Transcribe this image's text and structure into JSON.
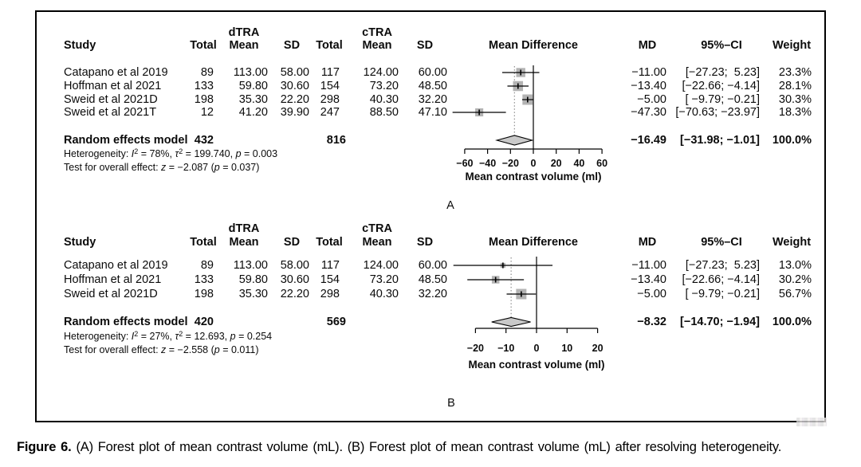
{
  "figure": {
    "caption_label": "Figure 6.",
    "caption_text": "(A) Forest plot of mean contrast volume (mL). (B) Forest plot of mean contrast volume (mL) after resolving heterogeneity."
  },
  "columns": {
    "study": "Study",
    "total": "Total",
    "dtra": "dTRA",
    "ctra": "cTRA",
    "mean": "Mean",
    "sd": "SD",
    "mean_difference": "Mean Difference",
    "md": "MD",
    "ci": "95%–CI",
    "weight": "Weight"
  },
  "chart_data": [
    {
      "type": "forest",
      "panel_label": "A",
      "axis": {
        "ticks": [
          -60,
          -40,
          -20,
          0,
          20,
          40,
          60
        ],
        "xlabel": "Mean contrast volume (ml)",
        "xlim": [
          -75,
          62
        ]
      },
      "studies": [
        {
          "study": "Catapano et al 2019",
          "dtra_total": "89",
          "dtra_mean": "113.00",
          "dtra_sd": "58.00",
          "ctra_total": "117",
          "ctra_mean": "124.00",
          "ctra_sd": "60.00",
          "md": -11.0,
          "ci_low": -27.23,
          "ci_high": 5.23,
          "md_text": "−11.00",
          "ci_text": "[−27.23;  5.23]",
          "weight": 23.3,
          "weight_text": "23.3%"
        },
        {
          "study": "Hoffman et al 2021",
          "dtra_total": "133",
          "dtra_mean": "59.80",
          "dtra_sd": "30.60",
          "ctra_total": "154",
          "ctra_mean": "73.20",
          "ctra_sd": "48.50",
          "md": -13.4,
          "ci_low": -22.66,
          "ci_high": -4.14,
          "md_text": "−13.40",
          "ci_text": "[−22.66; −4.14]",
          "weight": 28.1,
          "weight_text": "28.1%"
        },
        {
          "study": "Sweid et al 2021D",
          "dtra_total": "198",
          "dtra_mean": "35.30",
          "dtra_sd": "22.20",
          "ctra_total": "298",
          "ctra_mean": "40.30",
          "ctra_sd": "32.20",
          "md": -5.0,
          "ci_low": -9.79,
          "ci_high": -0.21,
          "md_text": "−5.00",
          "ci_text": "[ −9.79; −0.21]",
          "weight": 30.3,
          "weight_text": "30.3%"
        },
        {
          "study": "Sweid et al 2021T",
          "dtra_total": "12",
          "dtra_mean": "41.20",
          "dtra_sd": "39.90",
          "ctra_total": "247",
          "ctra_mean": "88.50",
          "ctra_sd": "47.10",
          "md": -47.3,
          "ci_low": -70.63,
          "ci_high": -23.97,
          "md_text": "−47.30",
          "ci_text": "[−70.63; −23.97]",
          "weight": 18.3,
          "weight_text": "18.3%"
        }
      ],
      "summary": {
        "label": "Random effects model",
        "dtra_total": "432",
        "ctra_total": "816",
        "md": -16.49,
        "ci_low": -31.98,
        "ci_high": -1.01,
        "md_text": "−16.49",
        "ci_text": "[−31.98; −1.01]",
        "weight_text": "100.0%"
      },
      "heterogeneity": [
        {
          "t": "Heterogeneity: "
        },
        {
          "t": "I",
          "s": "i"
        },
        {
          "t": "2",
          "s": "sup"
        },
        {
          "t": " = 78%, "
        },
        {
          "t": "τ",
          "s": "i"
        },
        {
          "t": "2",
          "s": "sup"
        },
        {
          "t": " = 199.740, "
        },
        {
          "t": "p",
          "s": "i"
        },
        {
          "t": " = 0.003"
        }
      ],
      "overall_effect": [
        {
          "t": "Test for overall effect: "
        },
        {
          "t": "z",
          "s": "i"
        },
        {
          "t": " = −2.087 ("
        },
        {
          "t": "p",
          "s": "i"
        },
        {
          "t": " = 0.037)"
        }
      ]
    },
    {
      "type": "forest",
      "panel_label": "B",
      "axis": {
        "ticks": [
          -20,
          -10,
          0,
          10,
          20
        ],
        "xlabel": "Mean contrast volume (ml)",
        "xlim": [
          -28,
          21
        ]
      },
      "studies": [
        {
          "study": "Catapano et al 2019",
          "dtra_total": "89",
          "dtra_mean": "113.00",
          "dtra_sd": "58.00",
          "ctra_total": "117",
          "ctra_mean": "124.00",
          "ctra_sd": "60.00",
          "md": -11.0,
          "ci_low": -27.23,
          "ci_high": 5.23,
          "md_text": "−11.00",
          "ci_text": "[−27.23;  5.23]",
          "weight": 13.0,
          "weight_text": "13.0%"
        },
        {
          "study": "Hoffman et al 2021",
          "dtra_total": "133",
          "dtra_mean": "59.80",
          "dtra_sd": "30.60",
          "ctra_total": "154",
          "ctra_mean": "73.20",
          "ctra_sd": "48.50",
          "md": -13.4,
          "ci_low": -22.66,
          "ci_high": -4.14,
          "md_text": "−13.40",
          "ci_text": "[−22.66; −4.14]",
          "weight": 30.2,
          "weight_text": "30.2%"
        },
        {
          "study": "Sweid et al 2021D",
          "dtra_total": "198",
          "dtra_mean": "35.30",
          "dtra_sd": "22.20",
          "ctra_total": "298",
          "ctra_mean": "40.30",
          "ctra_sd": "32.20",
          "md": -5.0,
          "ci_low": -9.79,
          "ci_high": -0.21,
          "md_text": "−5.00",
          "ci_text": "[ −9.79; −0.21]",
          "weight": 56.7,
          "weight_text": "56.7%"
        }
      ],
      "summary": {
        "label": "Random effects model",
        "dtra_total": "420",
        "ctra_total": "569",
        "md": -8.32,
        "ci_low": -14.7,
        "ci_high": -1.94,
        "md_text": "−8.32",
        "ci_text": "[−14.70; −1.94]",
        "weight_text": "100.0%"
      },
      "heterogeneity": [
        {
          "t": "Heterogeneity: "
        },
        {
          "t": "I",
          "s": "i"
        },
        {
          "t": "2",
          "s": "sup"
        },
        {
          "t": " = 27%, "
        },
        {
          "t": "τ",
          "s": "i"
        },
        {
          "t": "2",
          "s": "sup"
        },
        {
          "t": " = 12.693, "
        },
        {
          "t": "p",
          "s": "i"
        },
        {
          "t": " = 0.254"
        }
      ],
      "overall_effect": [
        {
          "t": "Test for overall effect: "
        },
        {
          "t": "z",
          "s": "i"
        },
        {
          "t": " = −2.558 ("
        },
        {
          "t": "p",
          "s": "i"
        },
        {
          "t": " = 0.011)"
        }
      ]
    }
  ]
}
